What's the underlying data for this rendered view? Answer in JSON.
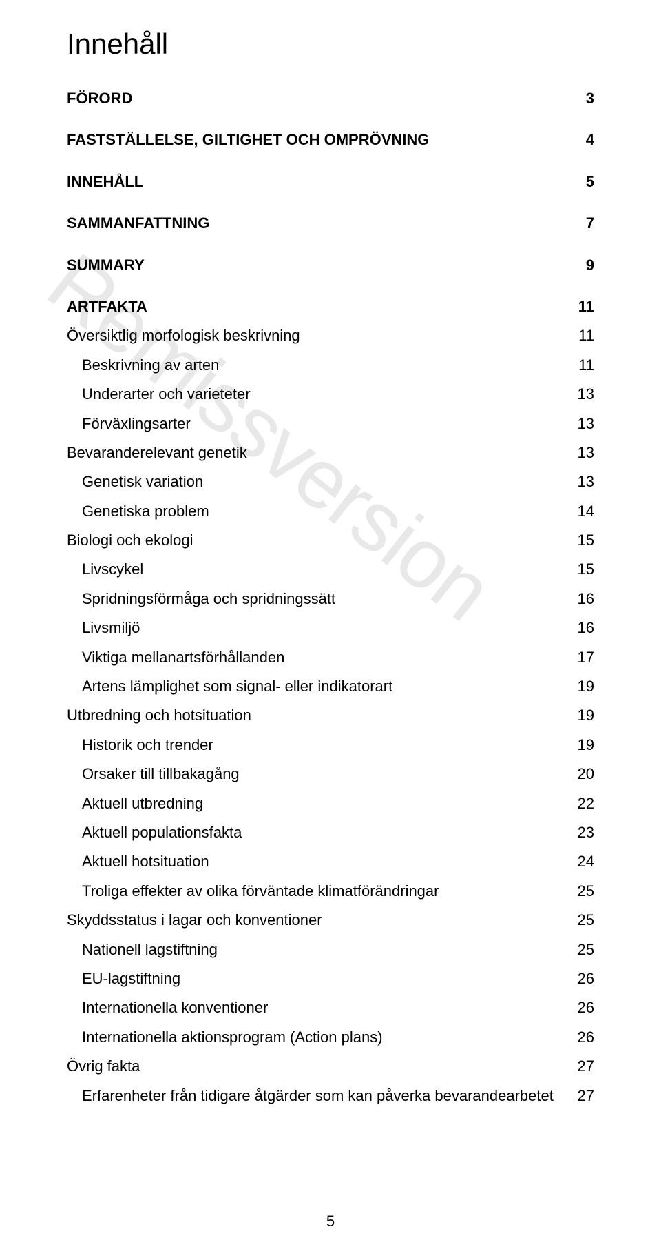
{
  "page": {
    "title": "Innehåll",
    "watermark": "Remissversion",
    "footer_page_number": "5",
    "colors": {
      "background": "#ffffff",
      "text": "#000000",
      "watermark": "#e8e8e8"
    },
    "typography": {
      "title_fontsize": 42,
      "row_fontsize": 22,
      "watermark_fontsize": 122,
      "font_family": "Arial"
    }
  },
  "toc": {
    "entries": [
      {
        "label": "FÖRORD",
        "page": "3",
        "level": 0,
        "first": true
      },
      {
        "label": "FASTSTÄLLELSE, GILTIGHET OCH OMPRÖVNING",
        "page": "4",
        "level": 0
      },
      {
        "label": "INNEHÅLL",
        "page": "5",
        "level": 0
      },
      {
        "label": "SAMMANFATTNING",
        "page": "7",
        "level": 0
      },
      {
        "label": "SUMMARY",
        "page": "9",
        "level": 0
      },
      {
        "label": "ARTFAKTA",
        "page": "11",
        "level": 0
      },
      {
        "label": "Översiktlig morfologisk beskrivning",
        "page": "11",
        "level": 1
      },
      {
        "label": "Beskrivning av arten",
        "page": "11",
        "level": 2
      },
      {
        "label": "Underarter och varieteter",
        "page": "13",
        "level": 2
      },
      {
        "label": "Förväxlingsarter",
        "page": "13",
        "level": 2
      },
      {
        "label": "Bevaranderelevant genetik",
        "page": "13",
        "level": 1
      },
      {
        "label": "Genetisk variation",
        "page": "13",
        "level": 2
      },
      {
        "label": "Genetiska problem",
        "page": "14",
        "level": 2
      },
      {
        "label": "Biologi och ekologi",
        "page": "15",
        "level": 1
      },
      {
        "label": "Livscykel",
        "page": "15",
        "level": 2
      },
      {
        "label": "Spridningsförmåga och spridningssätt",
        "page": "16",
        "level": 2
      },
      {
        "label": "Livsmiljö",
        "page": "16",
        "level": 2
      },
      {
        "label": "Viktiga mellanartsförhållanden",
        "page": "17",
        "level": 2
      },
      {
        "label": "Artens lämplighet som signal- eller indikatorart",
        "page": "19",
        "level": 2
      },
      {
        "label": "Utbredning och hotsituation",
        "page": "19",
        "level": 1
      },
      {
        "label": "Historik och trender",
        "page": "19",
        "level": 2
      },
      {
        "label": "Orsaker till tillbakagång",
        "page": "20",
        "level": 2
      },
      {
        "label": "Aktuell utbredning",
        "page": "22",
        "level": 2
      },
      {
        "label": "Aktuell populationsfakta",
        "page": "23",
        "level": 2
      },
      {
        "label": "Aktuell hotsituation",
        "page": "24",
        "level": 2
      },
      {
        "label": "Troliga effekter av olika förväntade klimatförändringar",
        "page": "25",
        "level": 2
      },
      {
        "label": "Skyddsstatus i lagar och konventioner",
        "page": "25",
        "level": 1
      },
      {
        "label": "Nationell lagstiftning",
        "page": "25",
        "level": 2
      },
      {
        "label": "EU-lagstiftning",
        "page": "26",
        "level": 2
      },
      {
        "label": "Internationella konventioner",
        "page": "26",
        "level": 2
      },
      {
        "label": "Internationella aktionsprogram (Action plans)",
        "page": "26",
        "level": 2
      },
      {
        "label": "Övrig fakta",
        "page": "27",
        "level": 1
      },
      {
        "label": "Erfarenheter från tidigare åtgärder som kan påverka bevarandearbetet",
        "page": "27",
        "level": 2
      }
    ]
  }
}
